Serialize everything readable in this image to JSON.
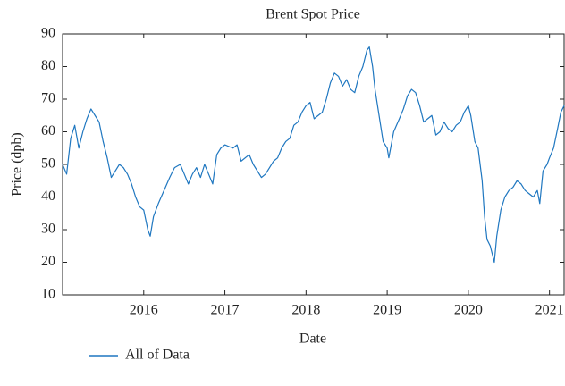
{
  "chart_data": {
    "type": "line",
    "title": "Brent Spot Price",
    "x_label": "Date",
    "y_label": "Price (dpb)",
    "x": [
      2015.0,
      2015.05,
      2015.1,
      2015.15,
      2015.2,
      2015.25,
      2015.3,
      2015.35,
      2015.4,
      2015.45,
      2015.5,
      2015.55,
      2015.6,
      2015.65,
      2015.7,
      2015.75,
      2015.8,
      2015.85,
      2015.9,
      2015.95,
      2016.0,
      2016.05,
      2016.08,
      2016.12,
      2016.18,
      2016.25,
      2016.32,
      2016.38,
      2016.45,
      2016.5,
      2016.55,
      2016.6,
      2016.65,
      2016.7,
      2016.75,
      2016.8,
      2016.85,
      2016.9,
      2016.95,
      2017.0,
      2017.1,
      2017.15,
      2017.2,
      2017.3,
      2017.35,
      2017.45,
      2017.5,
      2017.55,
      2017.6,
      2017.65,
      2017.7,
      2017.75,
      2017.8,
      2017.85,
      2017.9,
      2017.95,
      2018.0,
      2018.05,
      2018.1,
      2018.15,
      2018.2,
      2018.25,
      2018.3,
      2018.35,
      2018.4,
      2018.45,
      2018.5,
      2018.55,
      2018.6,
      2018.65,
      2018.7,
      2018.75,
      2018.78,
      2018.82,
      2018.85,
      2018.9,
      2018.95,
      2019.0,
      2019.02,
      2019.08,
      2019.15,
      2019.2,
      2019.25,
      2019.3,
      2019.35,
      2019.4,
      2019.45,
      2019.5,
      2019.55,
      2019.6,
      2019.65,
      2019.7,
      2019.75,
      2019.8,
      2019.85,
      2019.9,
      2019.95,
      2020.0,
      2020.03,
      2020.08,
      2020.12,
      2020.17,
      2020.2,
      2020.23,
      2020.27,
      2020.3,
      2020.32,
      2020.35,
      2020.4,
      2020.45,
      2020.5,
      2020.55,
      2020.6,
      2020.65,
      2020.7,
      2020.75,
      2020.8,
      2020.85,
      2020.88,
      2020.92,
      2020.97,
      2021.0,
      2021.05,
      2021.1,
      2021.14,
      2021.18
    ],
    "series": [
      {
        "name": "All of Data",
        "color": "#1f77c0",
        "values": [
          50,
          47,
          58,
          62,
          55,
          60,
          64,
          67,
          65,
          63,
          57,
          52,
          46,
          48,
          50,
          49,
          47,
          44,
          40,
          37,
          36,
          30,
          28,
          34,
          38,
          42,
          46,
          49,
          50,
          47,
          44,
          47,
          49,
          46,
          50,
          47,
          44,
          53,
          55,
          56,
          55,
          56,
          51,
          53,
          50,
          46,
          47,
          49,
          51,
          52,
          55,
          57,
          58,
          62,
          63,
          66,
          68,
          69,
          64,
          65,
          66,
          70,
          75,
          78,
          77,
          74,
          76,
          73,
          72,
          77,
          80,
          85,
          86,
          80,
          73,
          65,
          57,
          55,
          52,
          60,
          64,
          67,
          71,
          73,
          72,
          68,
          63,
          64,
          65,
          59,
          60,
          63,
          61,
          60,
          62,
          63,
          66,
          68,
          65,
          57,
          55,
          45,
          34,
          27,
          25,
          22,
          20,
          28,
          36,
          40,
          42,
          43,
          45,
          44,
          42,
          41,
          40,
          42,
          38,
          48,
          50,
          52,
          55,
          61,
          66,
          68
        ]
      }
    ],
    "xlim": [
      2015.0,
      2021.18
    ],
    "xticks": [
      2016,
      2017,
      2018,
      2019,
      2020,
      2021
    ],
    "ylim": [
      10,
      90
    ],
    "yticks": [
      10,
      20,
      30,
      40,
      50,
      60,
      70,
      80,
      90
    ],
    "legend": "bottom-left"
  }
}
